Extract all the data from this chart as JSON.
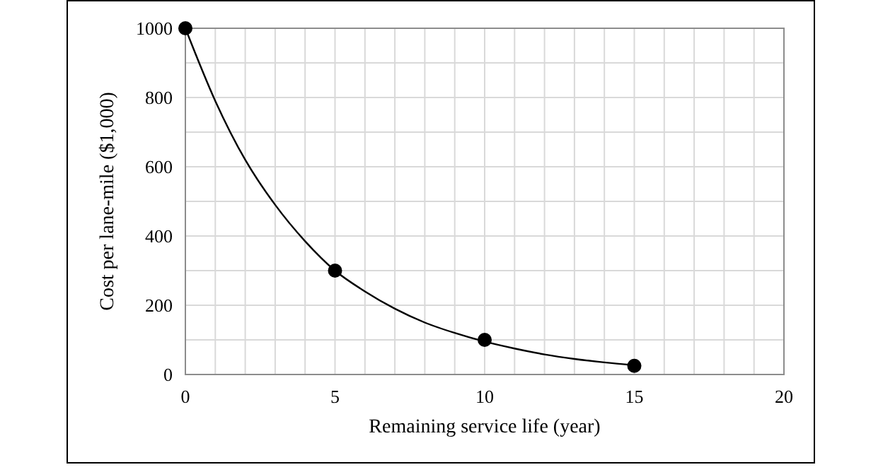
{
  "chart_data": {
    "type": "scatter",
    "xlabel": "Remaining service life (year)",
    "ylabel": "Cost per lane-mile ($1,000)",
    "xlim": [
      0,
      20
    ],
    "ylim": [
      0,
      1000
    ],
    "xticks": [
      0,
      {
        "value": 1,
        "label": null
      },
      {
        "value": 2,
        "label": null
      },
      {
        "value": 3,
        "label": null
      },
      {
        "value": 4,
        "label": null
      },
      5,
      {
        "value": 6,
        "label": null
      },
      {
        "value": 7,
        "label": null
      },
      {
        "value": 8,
        "label": null
      },
      {
        "value": 9,
        "label": null
      },
      10,
      {
        "value": 11,
        "label": null
      },
      {
        "value": 12,
        "label": null
      },
      {
        "value": 13,
        "label": null
      },
      {
        "value": 14,
        "label": null
      },
      15,
      {
        "value": 16,
        "label": null
      },
      {
        "value": 17,
        "label": null
      },
      {
        "value": 18,
        "label": null
      },
      {
        "value": 19,
        "label": null
      },
      20
    ],
    "yticks": [
      0,
      {
        "value": 100,
        "label": null
      },
      200,
      {
        "value": 300,
        "label": null
      },
      400,
      {
        "value": 500,
        "label": null
      },
      600,
      {
        "value": 700,
        "label": null
      },
      800,
      {
        "value": 900,
        "label": null
      },
      1000
    ],
    "grid": true,
    "series": [
      {
        "type": "line",
        "color": "#000000",
        "marker": "none",
        "x": [
          0,
          1,
          2,
          3,
          4,
          5,
          6,
          7,
          8,
          9,
          10,
          11,
          12,
          13,
          14,
          15
        ],
        "values": [
          1000,
          790,
          620,
          490,
          385,
          300,
          240,
          190,
          150,
          120,
          95,
          75,
          58,
          45,
          35,
          27
        ]
      },
      {
        "color": "#000000",
        "marker": "circle",
        "x": [
          0,
          5,
          10,
          15
        ],
        "values": [
          1000,
          300,
          100,
          25
        ]
      }
    ]
  }
}
